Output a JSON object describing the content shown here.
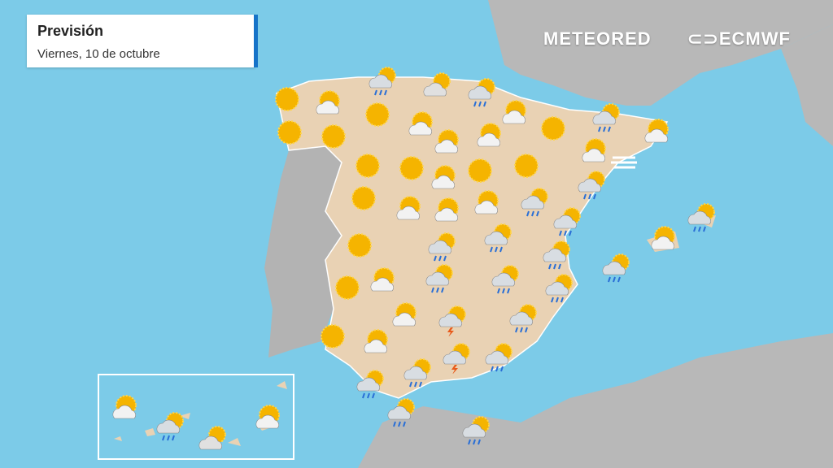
{
  "header": {
    "title": "Previsión",
    "subtitle": "Viernes, 10 de octubre"
  },
  "logos": {
    "meteored": "METEORED",
    "ecmwf": "ECMWF"
  },
  "colors": {
    "sea": "#7ccbe8",
    "land": "#b5b5b5",
    "spain": "#e9d2b4",
    "accent": "#1673c8",
    "sun": "#f5b400"
  },
  "icons": [
    "sun",
    "sun-cloud",
    "rain",
    "cloud-sun",
    "rain",
    "sun",
    "sun",
    "sun",
    "sun-cloud",
    "sun-cloud",
    "sun",
    "rain",
    "sun-cloud",
    "sun-cloud",
    "sun-cloud",
    "sun",
    "sun",
    "sun-cloud",
    "sun",
    "sun",
    "sun-cloud",
    "fog",
    "sun",
    "sun-cloud",
    "sun-cloud",
    "sun-cloud",
    "rain",
    "rain",
    "rain",
    "sun",
    "rain",
    "rain",
    "rain",
    "rain",
    "sun-cloud",
    "rain",
    "sun",
    "sun-cloud",
    "rain",
    "rain",
    "rain",
    "sun-cloud",
    "storm",
    "rain",
    "sun",
    "sun-cloud",
    "storm",
    "rain",
    "rain",
    "rain",
    "rain",
    "rain",
    "sun-cloud",
    "rain",
    "cloud-sun",
    "sun-cloud"
  ]
}
